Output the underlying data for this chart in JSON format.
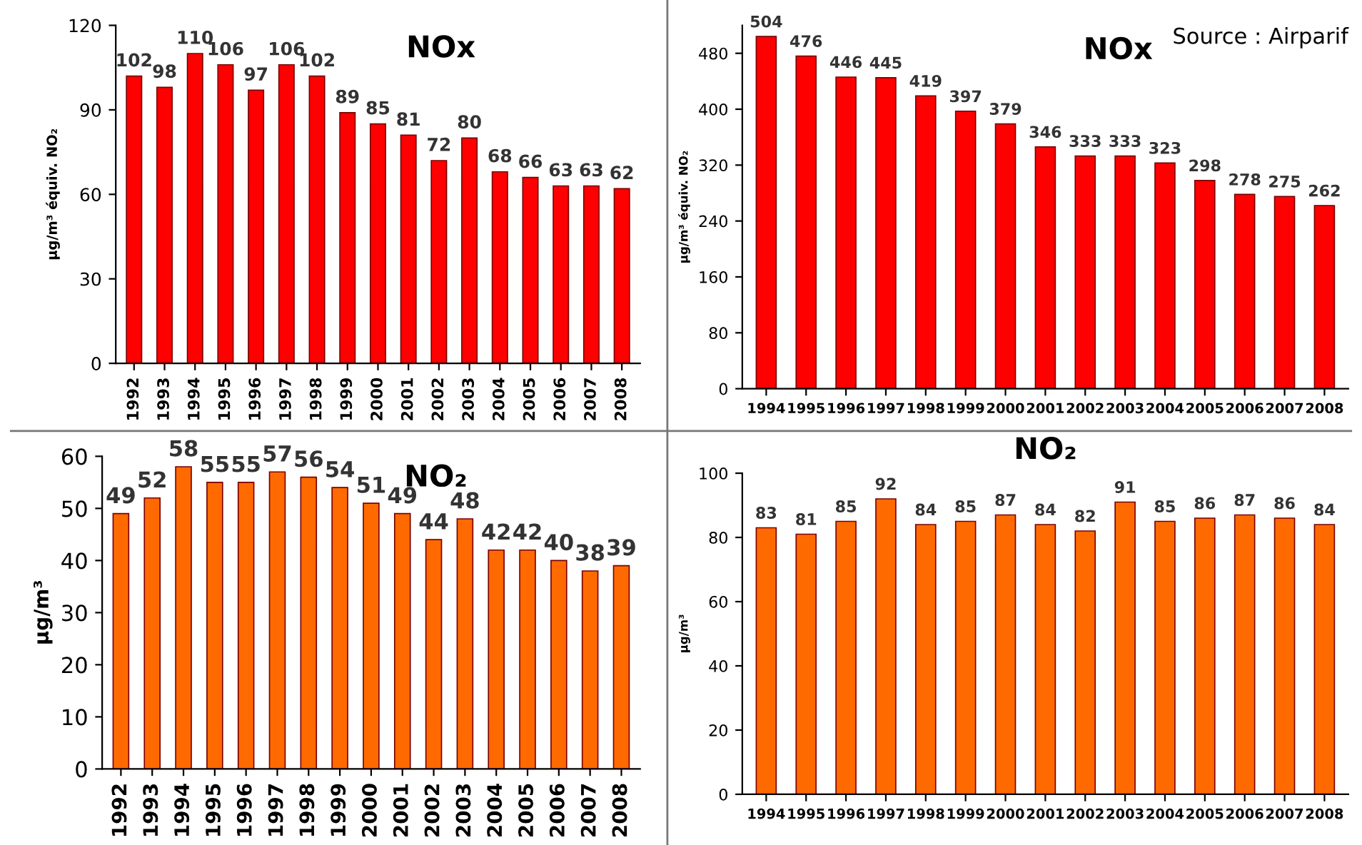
{
  "chart_data": [
    {
      "type": "bar",
      "title": "NOx",
      "ylabel": "µg/m³ équiv. NO₂",
      "categories": [
        "1992",
        "1993",
        "1994",
        "1995",
        "1996",
        "1997",
        "1998",
        "1999",
        "2000",
        "2001",
        "2002",
        "2003",
        "2004",
        "2005",
        "2006",
        "2007",
        "2008"
      ],
      "values": [
        102,
        98,
        110,
        106,
        97,
        106,
        102,
        89,
        85,
        81,
        72,
        80,
        68,
        66,
        63,
        63,
        62
      ],
      "color": "#ff0000",
      "ylim": [
        0,
        120
      ],
      "yticks": [
        0,
        30,
        60,
        90,
        120
      ],
      "data_labels": true,
      "grid": false,
      "legend": false
    },
    {
      "type": "bar",
      "title": "NOx",
      "ylabel": "µg/m³ équiv. NO₂",
      "annotations": [
        "Source : Airparif"
      ],
      "categories": [
        "1994",
        "1995",
        "1996",
        "1997",
        "1998",
        "1999",
        "2000",
        "2001",
        "2002",
        "2003",
        "2004",
        "2005",
        "2006",
        "2007",
        "2008"
      ],
      "values": [
        504,
        476,
        446,
        445,
        419,
        397,
        379,
        346,
        333,
        333,
        323,
        298,
        278,
        275,
        262
      ],
      "color": "#ff0000",
      "ylim": [
        0,
        520
      ],
      "yticks": [
        0,
        80,
        160,
        240,
        320,
        400,
        480
      ],
      "data_labels": true,
      "grid": false,
      "legend": false
    },
    {
      "type": "bar",
      "title": "NO₂",
      "ylabel": "µg/m³",
      "categories": [
        "1992",
        "1993",
        "1994",
        "1995",
        "1996",
        "1997",
        "1998",
        "1999",
        "2000",
        "2001",
        "2002",
        "2003",
        "2004",
        "2005",
        "2006",
        "2007",
        "2008"
      ],
      "values": [
        49,
        52,
        58,
        55,
        55,
        57,
        56,
        54,
        51,
        49,
        44,
        48,
        42,
        42,
        40,
        38,
        39
      ],
      "color": "#ff6a00",
      "ylim": [
        0,
        60
      ],
      "yticks": [
        0,
        10,
        20,
        30,
        40,
        50,
        60
      ],
      "data_labels": true,
      "grid": false,
      "legend": false
    },
    {
      "type": "bar",
      "title": "NO₂",
      "ylabel": "µg/m³",
      "categories": [
        "1994",
        "1995",
        "1996",
        "1997",
        "1998",
        "1999",
        "2000",
        "2001",
        "2002",
        "2003",
        "2004",
        "2005",
        "2006",
        "2007",
        "2008"
      ],
      "values": [
        83,
        81,
        85,
        92,
        84,
        85,
        87,
        84,
        82,
        91,
        85,
        86,
        87,
        86,
        84
      ],
      "color": "#ff6a00",
      "ylim": [
        0,
        100
      ],
      "yticks": [
        0,
        20,
        40,
        60,
        80,
        100
      ],
      "data_labels": true,
      "grid": false,
      "legend": false
    }
  ]
}
